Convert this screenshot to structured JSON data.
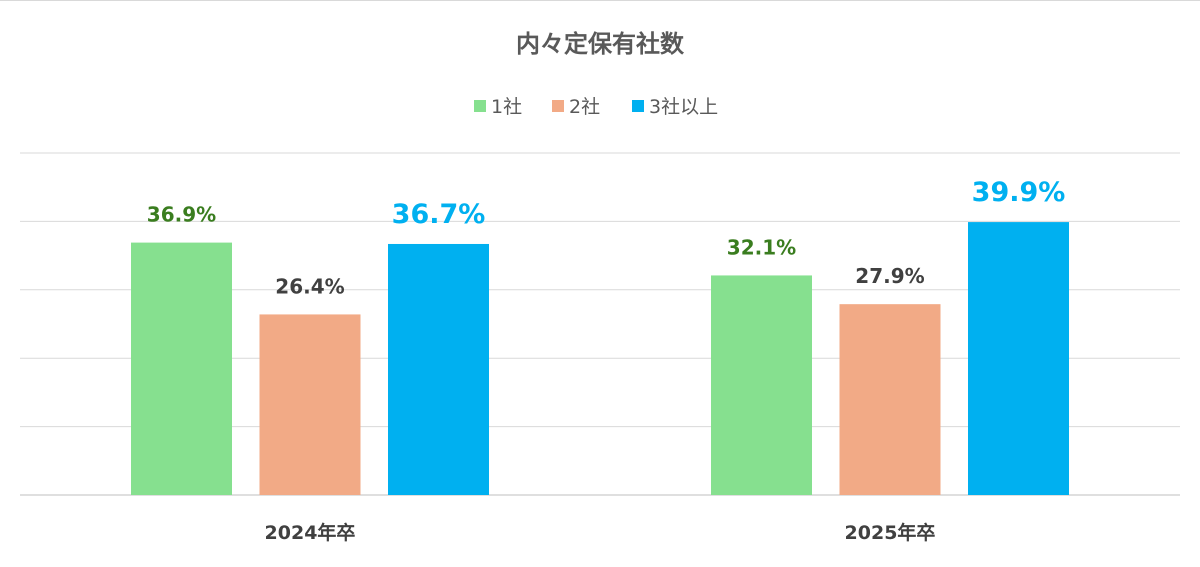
{
  "chart_data": {
    "type": "bar",
    "title": "内々定保有社数",
    "categories": [
      "2024年卒",
      "2025年卒"
    ],
    "series": [
      {
        "name": "1社",
        "color": "#86e08f",
        "label_color": "#3a7d1f",
        "values": [
          36.9,
          32.1
        ],
        "labels": [
          "36.9%",
          "32.1%"
        ]
      },
      {
        "name": "2社",
        "color": "#f2aa86",
        "label_color": "#404040",
        "values": [
          26.4,
          27.9
        ],
        "labels": [
          "26.4%",
          "27.9%"
        ]
      },
      {
        "name": "3社以上",
        "color": "#00b0f0",
        "label_color": "#00b0f0",
        "values": [
          36.7,
          39.9
        ],
        "labels": [
          "36.7%",
          "39.9%"
        ]
      }
    ],
    "ylim": [
      0,
      50
    ],
    "grid": true,
    "legend_position": "top-center"
  }
}
